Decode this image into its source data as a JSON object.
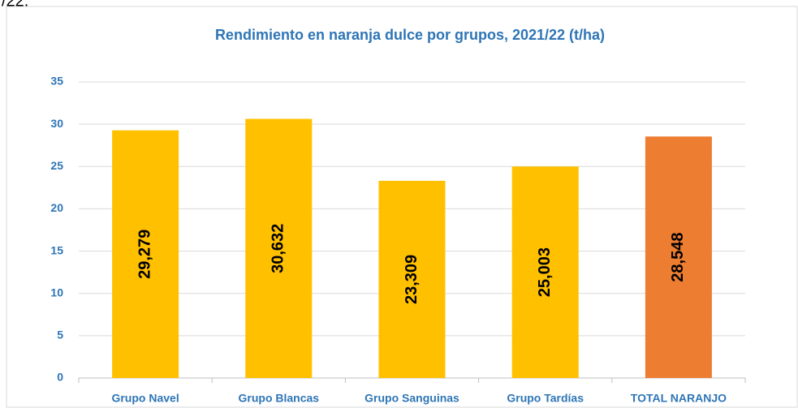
{
  "page_text": "/22.",
  "chart_data": {
    "type": "bar",
    "title": "Rendimiento en naranja dulce por grupos, 2021/22 (t/ha)",
    "categories": [
      "Grupo Navel",
      "Grupo Blancas",
      "Grupo Sanguinas",
      "Grupo Tardías",
      "TOTAL NARANJO"
    ],
    "values": [
      29.279,
      30.632,
      23.309,
      25.003,
      28.548
    ],
    "value_labels": [
      "29,279",
      "30,632",
      "23,309",
      "25,003",
      "28,548"
    ],
    "colors": [
      "#FFC000",
      "#FFC000",
      "#FFC000",
      "#FFC000",
      "#ED7D31"
    ],
    "ylim": [
      0,
      35
    ],
    "yticks": [
      0,
      5,
      10,
      15,
      20,
      25,
      30,
      35
    ],
    "grid": true
  }
}
